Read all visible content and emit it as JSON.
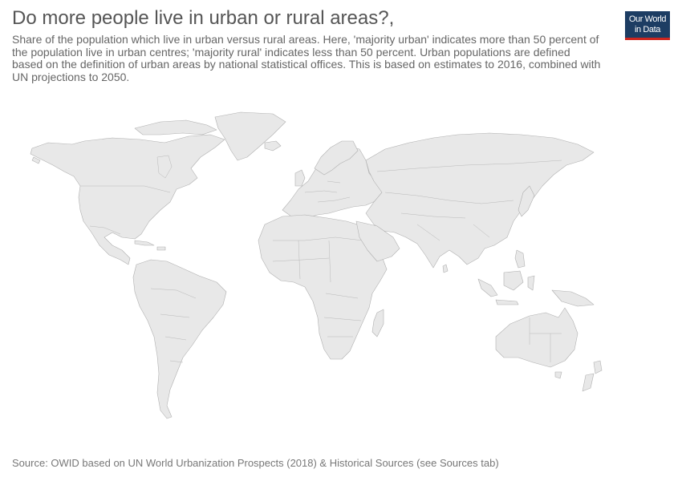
{
  "header": {
    "title": "Do more people live in urban or rural areas?,",
    "subtitle": "Share of the population which live in urban versus rural areas. Here, 'majority urban' indicates more than 50 percent of the population live in urban centres; 'majority rural' indicates less than 50 percent. Urban populations are defined based on the definition of urban areas by national statistical offices. This is based on estimates to 2016, combined with UN projections to 2050."
  },
  "logo": {
    "line1": "Our World",
    "line2": "in Data",
    "colors": {
      "background": "#1d3d63",
      "accent": "#ce261e",
      "text": "#ffffff"
    }
  },
  "map": {
    "land_color": "#e8e8e8",
    "border_color": "#b0b0b0"
  },
  "footer": {
    "source": "Source: OWID based on UN World Urbanization Prospects (2018) & Historical Sources (see Sources tab)"
  }
}
